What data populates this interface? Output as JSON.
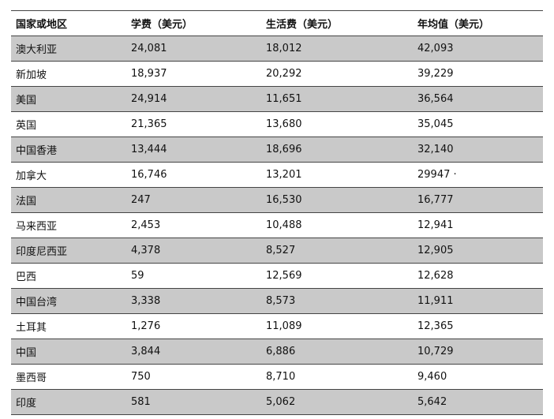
{
  "table": {
    "header": [
      "国家或地区",
      "学费（美元）",
      "生活费（美元）",
      "年均值（美元）"
    ],
    "rows": [
      [
        "澳大利亚",
        "24,081",
        "18,012",
        "42,093"
      ],
      [
        "新加坡",
        "18,937",
        "20,292",
        "39,229"
      ],
      [
        "美国",
        "24,914",
        "11,651",
        "36,564"
      ],
      [
        "英国",
        "21,365",
        "13,680",
        "35,045"
      ],
      [
        "中国香港",
        "13,444",
        "18,696",
        "32,140"
      ],
      [
        "加拿大",
        "16,746",
        "13,201",
        "29947 ·"
      ],
      [
        "法国",
        "247",
        "16,530",
        "16,777"
      ],
      [
        "马来西亚",
        "2,453",
        "10,488",
        "12,941"
      ],
      [
        "印度尼西亚",
        "4,378",
        "8,527",
        "12,905"
      ],
      [
        "巴西",
        "59",
        "12,569",
        "12,628"
      ],
      [
        "中国台湾",
        "3,338",
        "8,573",
        "11,911"
      ],
      [
        "土耳其",
        "1,276",
        "11,089",
        "12,365"
      ],
      [
        "中国",
        "3,844",
        "6,886",
        "10,729"
      ],
      [
        "墨西哥",
        "750",
        "8,710",
        "9,460"
      ],
      [
        "印度",
        "581",
        "5,062",
        "5,642"
      ]
    ]
  }
}
